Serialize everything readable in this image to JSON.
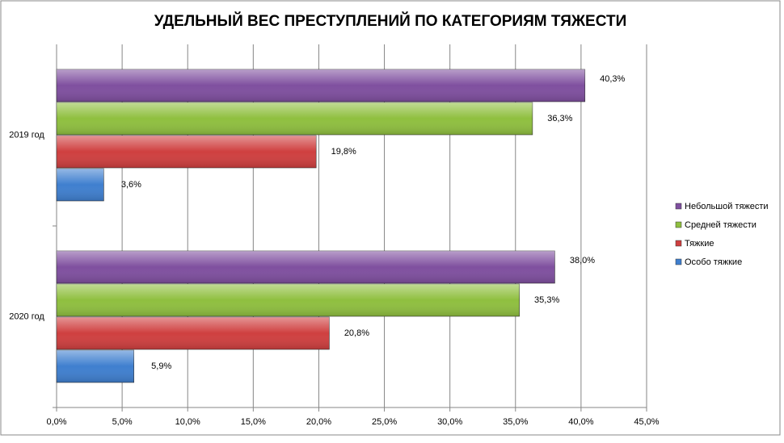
{
  "chart_data": {
    "type": "hbar",
    "title": "УДЕЛЬНЫЙ ВЕС ПРЕСТУПЛЕНИЙ ПО КАТЕГОРИЯМ ТЯЖЕСТИ",
    "categories": [
      "2019 год",
      "2020 год"
    ],
    "series": [
      {
        "name": "Небольшой тяжести",
        "color": "#7f4f9f",
        "values": [
          40.3,
          38.0
        ],
        "value_labels": [
          "40,3%",
          "38,0%"
        ]
      },
      {
        "name": "Средней тяжести",
        "color": "#8fbf3f",
        "values": [
          36.3,
          35.3
        ],
        "value_labels": [
          "36,3%",
          "35,3%"
        ]
      },
      {
        "name": "Тяжкие",
        "color": "#cf3f3f",
        "values": [
          19.8,
          20.8
        ],
        "value_labels": [
          "19,8%",
          "20,8%"
        ]
      },
      {
        "name": "Особо тяжкие",
        "color": "#3f7fcf",
        "values": [
          3.6,
          5.9
        ],
        "value_labels": [
          "3,6%",
          "5,9%"
        ]
      }
    ],
    "xlim": [
      0,
      45
    ],
    "xticks": [
      {
        "value": 0,
        "label": "0,0%"
      },
      {
        "value": 5,
        "label": "5,0%"
      },
      {
        "value": 10,
        "label": "10,0%"
      },
      {
        "value": 15,
        "label": "15,0%"
      },
      {
        "value": 20,
        "label": "20,0%"
      },
      {
        "value": 25,
        "label": "25,0%"
      },
      {
        "value": 30,
        "label": "30,0%"
      },
      {
        "value": 35,
        "label": "35,0%"
      },
      {
        "value": 40,
        "label": "40,0%"
      },
      {
        "value": 45,
        "label": "45,0%"
      }
    ],
    "grid": true,
    "legend": "right"
  }
}
